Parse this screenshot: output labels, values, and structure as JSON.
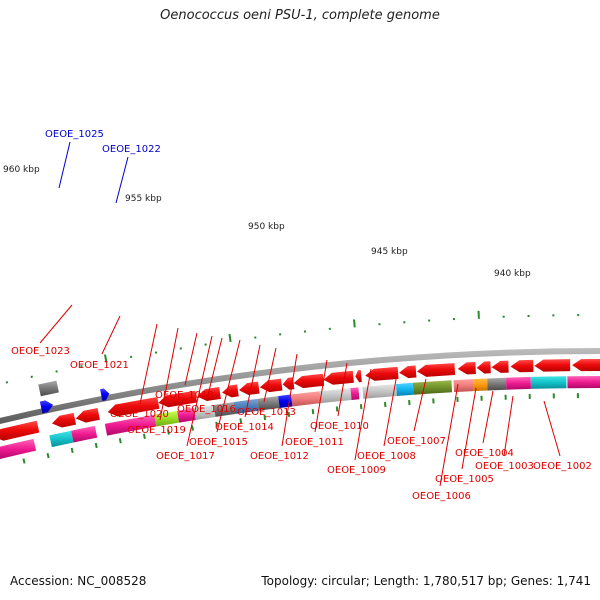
{
  "title": "Oenococcus oeni PSU-1, complete genome",
  "footer": {
    "accession": "Accession: NC_008528",
    "summary": "Topology: circular; Length: 1,780,517 bp; Genes: 1,741"
  },
  "colors": {
    "backbone": "#888888",
    "tick": "#2a8a2a",
    "gene_default": "#ee1111",
    "label_red": "#dd0000",
    "label_blue": "#0000cc",
    "blue_gene": "#1010ee"
  },
  "scale": {
    "labels": [
      {
        "text": "960 kbp"
      },
      {
        "text": "955 kbp"
      },
      {
        "text": "950 kbp"
      },
      {
        "text": "945 kbp"
      },
      {
        "text": "940 kbp"
      }
    ]
  },
  "genes_blue": [
    {
      "label": "OEOE_1025"
    },
    {
      "label": "OEOE_1022"
    }
  ],
  "genes_red": [
    {
      "label": "OEOE_1023"
    },
    {
      "label": "OEOE_1021"
    },
    {
      "label": "OEOE_1020"
    },
    {
      "label": "OEOE_1019"
    },
    {
      "label": "OEOE_1018"
    },
    {
      "label": "OEOE_1017"
    },
    {
      "label": "OEOE_1016"
    },
    {
      "label": "OEOE_1015"
    },
    {
      "label": "OEOE_1014"
    },
    {
      "label": "OEOE_1013"
    },
    {
      "label": "OEOE_1012"
    },
    {
      "label": "OEOE_1011"
    },
    {
      "label": "OEOE_1010"
    },
    {
      "label": "OEOE_1009"
    },
    {
      "label": "OEOE_1008"
    },
    {
      "label": "OEOE_1007"
    },
    {
      "label": "OEOE_1006"
    },
    {
      "label": "OEOE_1005"
    },
    {
      "label": "OEOE_1004"
    },
    {
      "label": "OEOE_1003"
    },
    {
      "label": "OEOE_1002"
    }
  ]
}
